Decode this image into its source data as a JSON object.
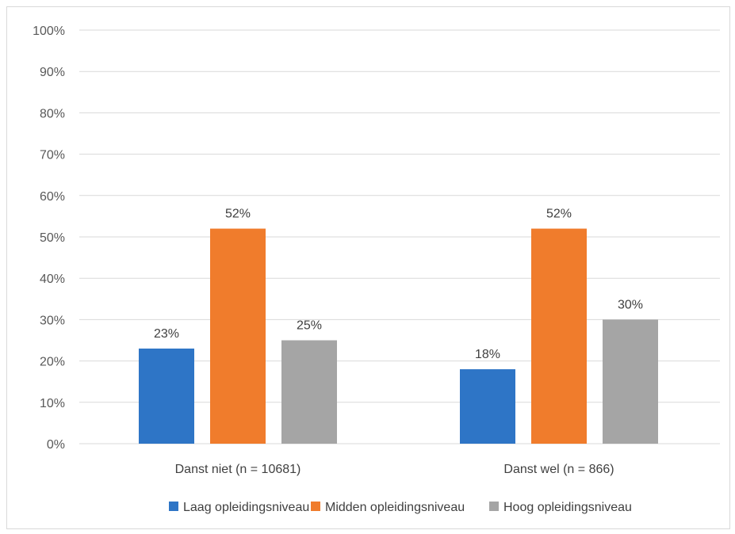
{
  "chart_data": {
    "type": "bar",
    "categories": [
      "Danst niet (n = 10681)",
      "Danst wel (n = 866)"
    ],
    "series": [
      {
        "name": "Laag opleidingsniveau",
        "color": "#2e75c6",
        "values": [
          23,
          18
        ],
        "labels": [
          "23%",
          "18%"
        ]
      },
      {
        "name": "Midden opleidingsniveau",
        "color": "#f07c2c",
        "values": [
          52,
          52
        ],
        "labels": [
          "52%",
          "52%"
        ]
      },
      {
        "name": "Hoog opleidingsniveau",
        "color": "#a5a5a5",
        "values": [
          25,
          30
        ],
        "labels": [
          "25%",
          "30%"
        ]
      }
    ],
    "ylim": [
      0,
      100
    ],
    "yticks": [
      "0%",
      "10%",
      "20%",
      "30%",
      "40%",
      "50%",
      "60%",
      "70%",
      "80%",
      "90%",
      "100%"
    ],
    "grid": true,
    "legend": "bottom",
    "title": "",
    "xlabel": "",
    "ylabel": ""
  }
}
